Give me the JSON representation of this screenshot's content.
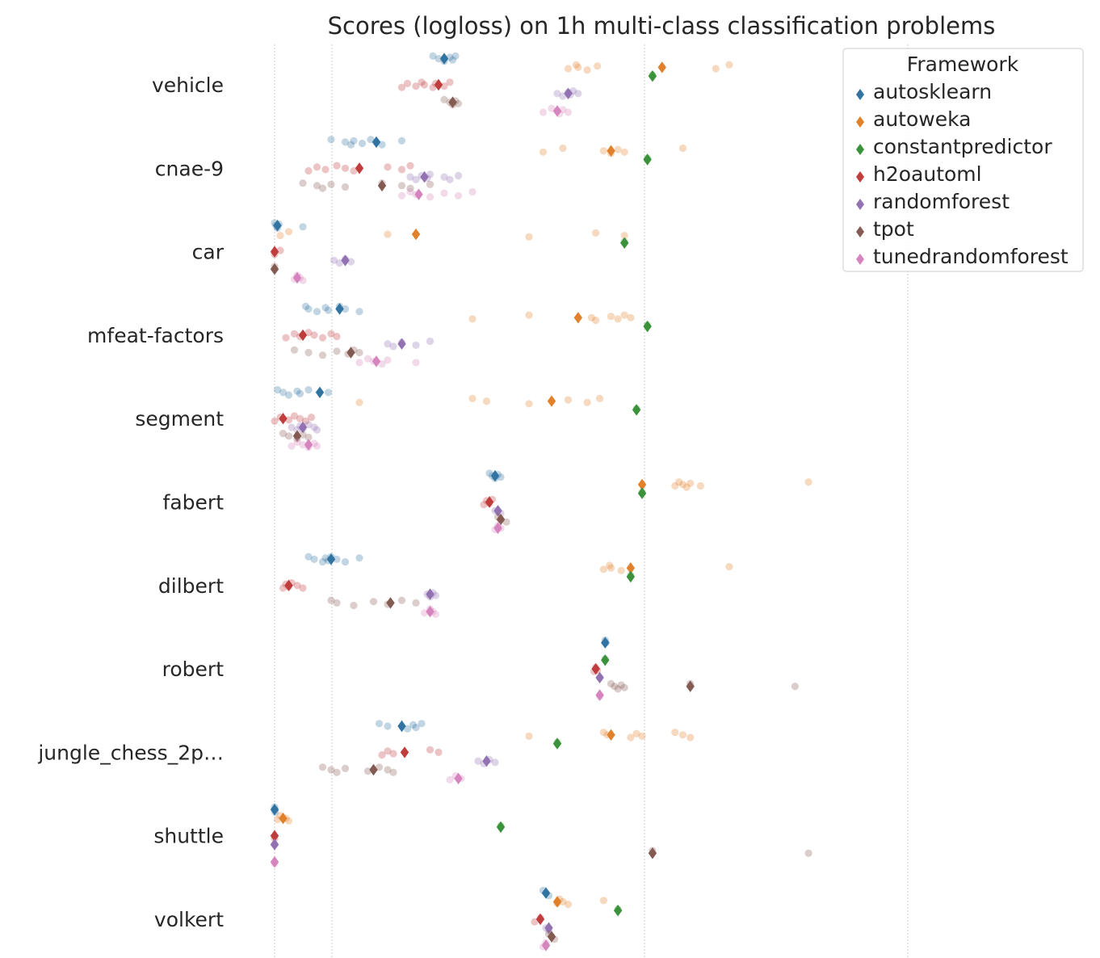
{
  "chart_data": {
    "type": "scatter",
    "title": "Scores (logloss) on 1h multi-class classification problems",
    "xlabel": "",
    "ylabel": "",
    "x_scale": "symlog",
    "categories": [
      "vehicle",
      "cnae-9",
      "car",
      "mfeat-factors",
      "segment",
      "fabert",
      "dilbert",
      "robert",
      "jungle_chess_2p…",
      "shuttle",
      "volkert"
    ],
    "grid": "vertical dotted lines",
    "legend": {
      "title": "Framework",
      "placement": "top-right"
    },
    "series": [
      {
        "name": "autosklearn",
        "color": "#3274a1",
        "mean": [
          0.6,
          0.36,
          0.01,
          0.23,
          0.16,
          0.78,
          0.2,
          1.52,
          0.45,
          0.0,
          0.96
        ],
        "runs": [
          [
            0.56,
            0.58,
            0.6,
            0.62,
            0.63,
            0.64
          ],
          [
            0.2,
            0.25,
            0.27,
            0.28,
            0.31,
            0.34,
            0.36,
            0.38,
            0.45
          ],
          [
            0.0,
            0.005,
            0.01,
            0.015,
            0.1
          ],
          [
            0.11,
            0.12,
            0.15,
            0.18,
            0.19,
            0.23,
            0.25,
            0.3
          ],
          [
            0.01,
            0.03,
            0.05,
            0.08,
            0.09,
            0.12,
            0.19
          ],
          [
            0.76,
            0.77,
            0.78,
            0.79,
            0.8
          ],
          [
            0.12,
            0.14,
            0.17,
            0.18,
            0.19,
            0.2,
            0.22,
            0.25,
            0.3
          ],
          [
            1.52,
            1.53
          ],
          [
            0.37,
            0.4,
            0.47,
            0.49,
            0.5,
            0.52
          ],
          [
            0.0,
            0.001,
            0.002
          ],
          [
            0.95,
            0.96,
            0.97
          ]
        ]
      },
      {
        "name": "autoweka",
        "color": "#e1812c",
        "mean": [
          2.5,
          1.6,
          0.5,
          1.2,
          0.98,
          2.1,
          1.9,
          null,
          1.6,
          0.03,
          1.0
        ],
        "runs": [
          [
            1.1,
            1.18,
            1.2,
            1.3,
            1.42,
            4.0,
            4.5
          ],
          [
            0.95,
            1.05,
            1.5,
            1.6,
            1.7,
            1.8,
            3.0
          ],
          [
            0.02,
            0.05,
            0.4,
            0.9,
            1.4,
            1.8
          ],
          [
            0.7,
            0.9,
            1.35,
            1.4,
            1.6,
            1.7,
            1.8,
            1.9
          ],
          [
            0.3,
            0.7,
            0.75,
            0.9,
            1.1,
            1.3,
            1.45
          ],
          [
            2.8,
            2.9,
            3.0,
            3.1,
            3.2,
            3.5,
            9.0
          ],
          [
            1.5,
            1.58,
            1.6,
            1.75,
            4.5
          ],
          [],
          [
            0.9,
            1.5,
            1.55,
            1.9,
            2.0,
            2.1,
            2.8,
            3.0,
            3.2
          ],
          [
            0.01,
            0.02,
            0.04,
            0.05
          ],
          [
            1.0,
            1.02,
            1.05,
            1.1,
            1.5
          ]
        ]
      },
      {
        "name": "constantpredictor",
        "color": "#3a923a",
        "mean": [
          2.3,
          2.2,
          1.8,
          2.2,
          2.0,
          2.1,
          1.9,
          1.52,
          1.0,
          0.8,
          1.7
        ],
        "runs": [
          [
            2.3
          ],
          [
            2.2
          ],
          [
            1.8
          ],
          [
            2.2
          ],
          [
            2.0
          ],
          [
            2.1
          ],
          [
            1.9
          ],
          [
            1.52
          ],
          [
            1.0
          ],
          [
            0.8
          ],
          [
            1.7
          ]
        ]
      },
      {
        "name": "h2oautoml",
        "color": "#c03d3e",
        "mean": [
          0.58,
          0.3,
          0.0,
          0.1,
          0.03,
          0.76,
          0.05,
          1.4,
          0.46,
          0.0,
          0.94
        ],
        "runs": [
          [
            0.45,
            0.47,
            0.5,
            0.52,
            0.53,
            0.56,
            0.57,
            0.6,
            0.62
          ],
          [
            0.12,
            0.15,
            0.18,
            0.22,
            0.25,
            0.28,
            0.4,
            0.45,
            0.48
          ],
          [
            0.0,
            0.02
          ],
          [
            0.04,
            0.07,
            0.09,
            0.12,
            0.14,
            0.17,
            0.2,
            0.22
          ],
          [
            0.0,
            0.02,
            0.05,
            0.07,
            0.09,
            0.11,
            0.13
          ],
          [
            0.74,
            0.75,
            0.76,
            0.77
          ],
          [
            0.03,
            0.04,
            0.05,
            0.06,
            0.08,
            0.1
          ],
          [
            1.38,
            1.4,
            1.42
          ],
          [
            0.38,
            0.4,
            0.42,
            0.55,
            0.58
          ],
          [
            0.0
          ],
          [
            0.92,
            0.94
          ]
        ]
      },
      {
        "name": "randomforest",
        "color": "#9372b2",
        "mean": [
          1.1,
          0.53,
          0.25,
          0.45,
          0.1,
          0.79,
          0.55,
          1.45,
          0.75,
          0.0,
          0.97
        ],
        "runs": [
          [
            1.0,
            1.05,
            1.1,
            1.12,
            1.15,
            1.2
          ],
          [
            0.48,
            0.5,
            0.52,
            0.54,
            0.55,
            0.6,
            0.62,
            0.65
          ],
          [
            0.21,
            0.23,
            0.25,
            0.27
          ],
          [
            0.4,
            0.42,
            0.45,
            0.5,
            0.55
          ],
          [
            0.06,
            0.08,
            0.09,
            0.1,
            0.12,
            0.14,
            0.15
          ],
          [
            0.78,
            0.8
          ],
          [
            0.54,
            0.55,
            0.56,
            0.57
          ],
          [
            1.45
          ],
          [
            0.72,
            0.74,
            0.76,
            0.78
          ],
          [
            0.0
          ],
          [
            0.96,
            0.97
          ]
        ]
      },
      {
        "name": "tpot",
        "color": "#845b53",
        "mean": [
          0.63,
          0.38,
          0.0,
          0.27,
          0.08,
          0.8,
          0.41,
          3.2,
          0.35,
          2.3,
          0.98
        ],
        "runs": [
          [
            0.6,
            0.62,
            0.63,
            0.64,
            0.65
          ],
          [
            0.1,
            0.15,
            0.17,
            0.2,
            0.25,
            0.38,
            0.45,
            0.48,
            0.55
          ],
          [
            0.0
          ],
          [
            0.07,
            0.12,
            0.17,
            0.22,
            0.26,
            0.28,
            0.3
          ],
          [
            0.03,
            0.05,
            0.08,
            0.1,
            0.12
          ],
          [
            0.79,
            0.8,
            0.82
          ],
          [
            0.2,
            0.22,
            0.28,
            0.35,
            0.4,
            0.45,
            0.5
          ],
          [
            1.6,
            1.65,
            1.7,
            1.75,
            1.8,
            3.2,
            8.0
          ],
          [
            0.17,
            0.2,
            0.22,
            0.25,
            0.33,
            0.37,
            0.4,
            0.42
          ],
          [
            2.3,
            9.0
          ],
          [
            0.97,
            0.98,
            0.99
          ]
        ]
      },
      {
        "name": "tunedrandomforest",
        "color": "#d684bd",
        "mean": [
          1.0,
          0.51,
          0.08,
          0.36,
          0.12,
          0.79,
          0.55,
          1.45,
          0.65,
          0.0,
          0.96
        ],
        "runs": [
          [
            0.95,
            0.98,
            1.0,
            1.02,
            1.05,
            1.1
          ],
          [
            0.45,
            0.48,
            0.5,
            0.55,
            0.6,
            0.65,
            0.7
          ],
          [
            0.07,
            0.08,
            0.09,
            0.1
          ],
          [
            0.3,
            0.33,
            0.35,
            0.38,
            0.4,
            0.5
          ],
          [
            0.06,
            0.08,
            0.1,
            0.12,
            0.14,
            0.15
          ],
          [
            0.78,
            0.79,
            0.8
          ],
          [
            0.53,
            0.55,
            0.56,
            0.57
          ],
          [
            1.45
          ],
          [
            0.62,
            0.64,
            0.66
          ],
          [
            0.0
          ],
          [
            0.95,
            0.96
          ]
        ]
      }
    ]
  }
}
